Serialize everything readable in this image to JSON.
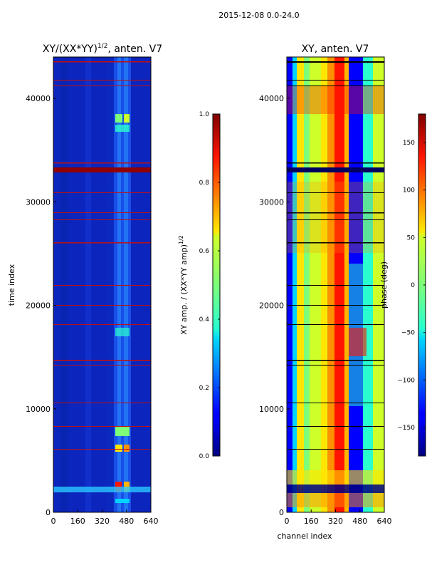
{
  "suptitle": "2015-12-08 0.0-24.0",
  "chart_data": [
    {
      "type": "heatmap",
      "title_main": "XY/(XX*YY)",
      "title_exp": "1/2",
      "title_suffix": ", anten. V7",
      "ylabel": "time index",
      "xlabel": "",
      "xlim": [
        0,
        640
      ],
      "ylim": [
        0,
        44000
      ],
      "xticks": [
        "0",
        "160",
        "320",
        "480",
        "640"
      ],
      "xtick_values": [
        0,
        160,
        320,
        480,
        640
      ],
      "yticks": [
        "0",
        "10000",
        "20000",
        "30000",
        "40000"
      ],
      "ytick_values": [
        0,
        10000,
        20000,
        30000,
        40000
      ],
      "colormap": "jet",
      "colorbar": {
        "label_main": "XY amp. / (XX*YY amp)",
        "label_exp": "1/2",
        "range": [
          0.0,
          1.0
        ],
        "ticks": [
          "0.0",
          "0.2",
          "0.4",
          "0.6",
          "0.8",
          "1.0"
        ],
        "tick_values": [
          0.0,
          0.2,
          0.4,
          0.6,
          0.8,
          1.0
        ]
      }
    },
    {
      "type": "heatmap",
      "title": "XY, anten. V7",
      "ylabel": "",
      "xlabel": "channel index",
      "xlim": [
        0,
        640
      ],
      "ylim": [
        0,
        44000
      ],
      "xticks": [
        "0",
        "160",
        "320",
        "480",
        "640"
      ],
      "xtick_values": [
        0,
        160,
        320,
        480,
        640
      ],
      "yticks": [
        "0",
        "10000",
        "20000",
        "30000",
        "40000"
      ],
      "ytick_values": [
        0,
        10000,
        20000,
        30000,
        40000
      ],
      "colormap": "jet",
      "colorbar": {
        "label": "phase (deg)",
        "range": [
          -180,
          180
        ],
        "ticks": [
          "−150",
          "−100",
          "−50",
          "0",
          "50",
          "100",
          "150"
        ],
        "tick_values": [
          -150,
          -100,
          -50,
          0,
          50,
          100,
          150
        ]
      }
    }
  ]
}
